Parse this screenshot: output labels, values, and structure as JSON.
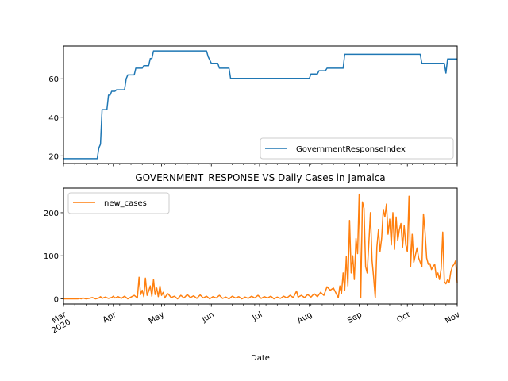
{
  "chart_data": [
    {
      "type": "line",
      "title": "",
      "xlabel": "",
      "ylabel": "",
      "xlim": [
        "2020-03-01",
        "2020-11-01"
      ],
      "ylim": [
        16,
        77
      ],
      "yticks": [
        20,
        40,
        60
      ],
      "legend": "bottom-right",
      "grid": false,
      "series": [
        {
          "name": "GovernmentResponseIndex",
          "color": "#1f77b4",
          "points": [
            [
              "2020-03-01",
              18.5
            ],
            [
              "2020-03-22",
              18.5
            ],
            [
              "2020-03-23",
              24
            ],
            [
              "2020-03-24",
              26
            ],
            [
              "2020-03-25",
              44
            ],
            [
              "2020-03-28",
              44
            ],
            [
              "2020-03-29",
              51.5
            ],
            [
              "2020-03-30",
              51.5
            ],
            [
              "2020-03-31",
              53.5
            ],
            [
              "2020-04-02",
              53.5
            ],
            [
              "2020-04-03",
              54.3
            ],
            [
              "2020-04-08",
              54.3
            ],
            [
              "2020-04-09",
              60
            ],
            [
              "2020-04-10",
              62
            ],
            [
              "2020-04-14",
              62
            ],
            [
              "2020-04-15",
              65.5
            ],
            [
              "2020-04-19",
              65.5
            ],
            [
              "2020-04-20",
              66.8
            ],
            [
              "2020-04-23",
              66.8
            ],
            [
              "2020-04-24",
              70.5
            ],
            [
              "2020-04-25",
              70.5
            ],
            [
              "2020-04-26",
              74.5
            ],
            [
              "2020-05-29",
              74.5
            ],
            [
              "2020-05-30",
              71.5
            ],
            [
              "2020-06-01",
              68
            ],
            [
              "2020-06-05",
              68
            ],
            [
              "2020-06-06",
              65.5
            ],
            [
              "2020-06-12",
              65.5
            ],
            [
              "2020-06-13",
              60.2
            ],
            [
              "2020-08-01",
              60.2
            ],
            [
              "2020-08-02",
              62.5
            ],
            [
              "2020-08-06",
              62.5
            ],
            [
              "2020-08-07",
              64.2
            ],
            [
              "2020-08-11",
              64.2
            ],
            [
              "2020-08-12",
              65.5
            ],
            [
              "2020-08-22",
              65.5
            ],
            [
              "2020-08-23",
              72.7
            ],
            [
              "2020-10-09",
              72.7
            ],
            [
              "2020-10-10",
              68
            ],
            [
              "2020-10-24",
              68
            ],
            [
              "2020-10-25",
              63
            ],
            [
              "2020-10-26",
              70.3
            ],
            [
              "2020-11-01",
              70.3
            ]
          ]
        }
      ]
    },
    {
      "type": "line",
      "title": "GOVERNMENT_RESPONSE VS Daily Cases in Jamaica",
      "xlabel": "Date",
      "ylabel": "",
      "xlim": [
        "2020-03-01",
        "2020-11-01"
      ],
      "ylim": [
        -12,
        257
      ],
      "yticks": [
        0,
        100,
        200
      ],
      "x_tick_labels": [
        {
          "date": "2020-03-01",
          "lines": [
            "Mar",
            "2020"
          ]
        },
        {
          "date": "2020-04-01",
          "lines": [
            "Apr"
          ]
        },
        {
          "date": "2020-05-01",
          "lines": [
            "May"
          ]
        },
        {
          "date": "2020-06-01",
          "lines": [
            "Jun"
          ]
        },
        {
          "date": "2020-07-01",
          "lines": [
            "Jul"
          ]
        },
        {
          "date": "2020-08-01",
          "lines": [
            "Aug"
          ]
        },
        {
          "date": "2020-09-01",
          "lines": [
            "Sep"
          ]
        },
        {
          "date": "2020-10-01",
          "lines": [
            "Oct"
          ]
        },
        {
          "date": "2020-11-01",
          "lines": [
            "Nov"
          ]
        }
      ],
      "legend": "top-left",
      "grid": false,
      "series": [
        {
          "name": "new_cases",
          "color": "#ff7f0e",
          "points": [
            [
              "2020-03-01",
              0
            ],
            [
              "2020-03-10",
              0
            ],
            [
              "2020-03-11",
              1
            ],
            [
              "2020-03-12",
              0
            ],
            [
              "2020-03-13",
              2
            ],
            [
              "2020-03-15",
              0
            ],
            [
              "2020-03-17",
              1
            ],
            [
              "2020-03-19",
              3
            ],
            [
              "2020-03-21",
              0
            ],
            [
              "2020-03-23",
              2
            ],
            [
              "2020-03-24",
              5
            ],
            [
              "2020-03-25",
              1
            ],
            [
              "2020-03-27",
              4
            ],
            [
              "2020-03-29",
              1
            ],
            [
              "2020-03-31",
              3
            ],
            [
              "2020-04-01",
              6
            ],
            [
              "2020-04-02",
              2
            ],
            [
              "2020-04-04",
              5
            ],
            [
              "2020-04-06",
              1
            ],
            [
              "2020-04-08",
              6
            ],
            [
              "2020-04-10",
              0
            ],
            [
              "2020-04-12",
              4
            ],
            [
              "2020-04-14",
              8
            ],
            [
              "2020-04-16",
              2
            ],
            [
              "2020-04-17",
              50
            ],
            [
              "2020-04-18",
              10
            ],
            [
              "2020-04-19",
              20
            ],
            [
              "2020-04-20",
              5
            ],
            [
              "2020-04-21",
              48
            ],
            [
              "2020-04-22",
              8
            ],
            [
              "2020-04-23",
              18
            ],
            [
              "2020-04-24",
              30
            ],
            [
              "2020-04-25",
              6
            ],
            [
              "2020-04-26",
              45
            ],
            [
              "2020-04-27",
              10
            ],
            [
              "2020-04-28",
              25
            ],
            [
              "2020-04-29",
              5
            ],
            [
              "2020-04-30",
              30
            ],
            [
              "2020-05-01",
              8
            ],
            [
              "2020-05-02",
              15
            ],
            [
              "2020-05-03",
              2
            ],
            [
              "2020-05-04",
              8
            ],
            [
              "2020-05-05",
              12
            ],
            [
              "2020-05-07",
              3
            ],
            [
              "2020-05-09",
              6
            ],
            [
              "2020-05-11",
              0
            ],
            [
              "2020-05-13",
              8
            ],
            [
              "2020-05-15",
              2
            ],
            [
              "2020-05-17",
              10
            ],
            [
              "2020-05-19",
              3
            ],
            [
              "2020-05-21",
              7
            ],
            [
              "2020-05-23",
              1
            ],
            [
              "2020-05-25",
              9
            ],
            [
              "2020-05-27",
              2
            ],
            [
              "2020-05-29",
              6
            ],
            [
              "2020-05-31",
              0
            ],
            [
              "2020-06-02",
              5
            ],
            [
              "2020-06-04",
              2
            ],
            [
              "2020-06-06",
              8
            ],
            [
              "2020-06-08",
              1
            ],
            [
              "2020-06-10",
              4
            ],
            [
              "2020-06-12",
              0
            ],
            [
              "2020-06-14",
              6
            ],
            [
              "2020-06-16",
              2
            ],
            [
              "2020-06-18",
              5
            ],
            [
              "2020-06-20",
              0
            ],
            [
              "2020-06-22",
              4
            ],
            [
              "2020-06-24",
              1
            ],
            [
              "2020-06-26",
              6
            ],
            [
              "2020-06-28",
              2
            ],
            [
              "2020-06-30",
              8
            ],
            [
              "2020-07-02",
              1
            ],
            [
              "2020-07-04",
              5
            ],
            [
              "2020-07-06",
              2
            ],
            [
              "2020-07-08",
              6
            ],
            [
              "2020-07-10",
              0
            ],
            [
              "2020-07-12",
              4
            ],
            [
              "2020-07-14",
              1
            ],
            [
              "2020-07-16",
              6
            ],
            [
              "2020-07-18",
              2
            ],
            [
              "2020-07-20",
              8
            ],
            [
              "2020-07-22",
              3
            ],
            [
              "2020-07-24",
              18
            ],
            [
              "2020-07-25",
              4
            ],
            [
              "2020-07-27",
              8
            ],
            [
              "2020-07-29",
              3
            ],
            [
              "2020-07-31",
              10
            ],
            [
              "2020-08-02",
              4
            ],
            [
              "2020-08-04",
              12
            ],
            [
              "2020-08-06",
              5
            ],
            [
              "2020-08-08",
              15
            ],
            [
              "2020-08-10",
              8
            ],
            [
              "2020-08-12",
              28
            ],
            [
              "2020-08-14",
              20
            ],
            [
              "2020-08-16",
              25
            ],
            [
              "2020-08-18",
              10
            ],
            [
              "2020-08-19",
              3
            ],
            [
              "2020-08-20",
              30
            ],
            [
              "2020-08-21",
              12
            ],
            [
              "2020-08-22",
              60
            ],
            [
              "2020-08-23",
              20
            ],
            [
              "2020-08-24",
              98
            ],
            [
              "2020-08-25",
              30
            ],
            [
              "2020-08-26",
              182
            ],
            [
              "2020-08-27",
              60
            ],
            [
              "2020-08-28",
              100
            ],
            [
              "2020-08-29",
              45
            ],
            [
              "2020-08-30",
              140
            ],
            [
              "2020-08-31",
              105
            ],
            [
              "2020-09-01",
              243
            ],
            [
              "2020-09-02",
              2
            ],
            [
              "2020-09-03",
              225
            ],
            [
              "2020-09-04",
              210
            ],
            [
              "2020-09-05",
              75
            ],
            [
              "2020-09-06",
              60
            ],
            [
              "2020-09-07",
              130
            ],
            [
              "2020-09-08",
              200
            ],
            [
              "2020-09-09",
              90
            ],
            [
              "2020-09-10",
              50
            ],
            [
              "2020-09-11",
              2
            ],
            [
              "2020-09-12",
              120
            ],
            [
              "2020-09-13",
              160
            ],
            [
              "2020-09-14",
              110
            ],
            [
              "2020-09-15",
              140
            ],
            [
              "2020-09-16",
              208
            ],
            [
              "2020-09-17",
              190
            ],
            [
              "2020-09-18",
              220
            ],
            [
              "2020-09-19",
              150
            ],
            [
              "2020-09-20",
              185
            ],
            [
              "2020-09-21",
              125
            ],
            [
              "2020-09-22",
              200
            ],
            [
              "2020-09-23",
              115
            ],
            [
              "2020-09-24",
              190
            ],
            [
              "2020-09-25",
              135
            ],
            [
              "2020-09-26",
              160
            ],
            [
              "2020-09-27",
              175
            ],
            [
              "2020-09-28",
              120
            ],
            [
              "2020-09-29",
              170
            ],
            [
              "2020-09-30",
              125
            ],
            [
              "2020-10-01",
              110
            ],
            [
              "2020-10-02",
              238
            ],
            [
              "2020-10-03",
              75
            ],
            [
              "2020-10-04",
              150
            ],
            [
              "2020-10-05",
              85
            ],
            [
              "2020-10-06",
              102
            ],
            [
              "2020-10-07",
              118
            ],
            [
              "2020-10-08",
              95
            ],
            [
              "2020-10-09",
              85
            ],
            [
              "2020-10-10",
              75
            ],
            [
              "2020-10-11",
              197
            ],
            [
              "2020-10-12",
              155
            ],
            [
              "2020-10-13",
              95
            ],
            [
              "2020-10-14",
              80
            ],
            [
              "2020-10-15",
              82
            ],
            [
              "2020-10-16",
              68
            ],
            [
              "2020-10-17",
              75
            ],
            [
              "2020-10-18",
              80
            ],
            [
              "2020-10-19",
              50
            ],
            [
              "2020-10-20",
              60
            ],
            [
              "2020-10-21",
              45
            ],
            [
              "2020-10-22",
              70
            ],
            [
              "2020-10-23",
              155
            ],
            [
              "2020-10-24",
              40
            ],
            [
              "2020-10-25",
              35
            ],
            [
              "2020-10-26",
              45
            ],
            [
              "2020-10-27",
              38
            ],
            [
              "2020-10-28",
              62
            ],
            [
              "2020-10-29",
              75
            ],
            [
              "2020-10-30",
              80
            ],
            [
              "2020-10-31",
              88
            ],
            [
              "2020-11-01",
              38
            ]
          ]
        }
      ]
    }
  ]
}
